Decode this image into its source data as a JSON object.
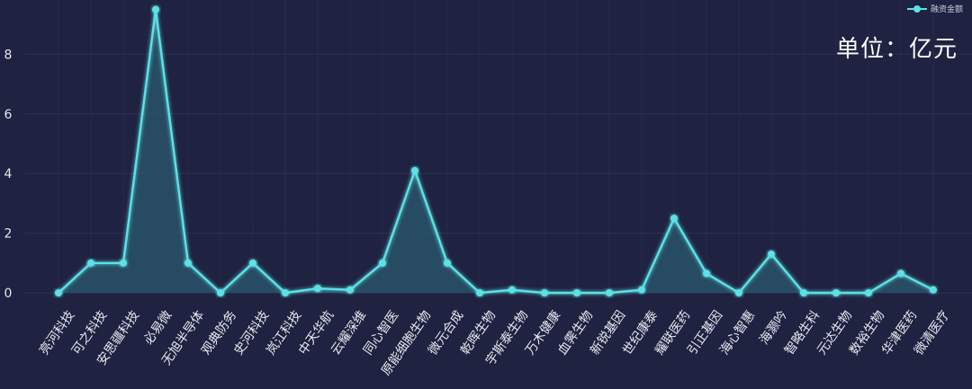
{
  "unit_label": "单位：亿元",
  "colors": {
    "background": "#1f2240",
    "line": "#5ce1e6",
    "area": "#2a5a6e",
    "grid": "#2c3156"
  },
  "chart_data": {
    "type": "line",
    "title": "",
    "xlabel": "",
    "ylabel": "",
    "ylim": [
      0,
      9.6
    ],
    "yticks": [
      0,
      2,
      4,
      6,
      8
    ],
    "grid": true,
    "legend_position": "top-right",
    "categories": [
      "亮河科技",
      "可之科技",
      "安思疆科技",
      "必易微",
      "无旭半导体",
      "观典防务",
      "史河科技",
      "岚江科技",
      "中天华航",
      "云耀深维",
      "同心智医",
      "原能细胞生物",
      "微元合成",
      "乾晖生物",
      "宇斯泰生物",
      "万木健康",
      "血霁生物",
      "新锐基因",
      "世纪康泰",
      "耀联医药",
      "引正基因",
      "海心智惠",
      "海灏吟",
      "智略生科",
      "元达生物",
      "数裕生物",
      "华津医药",
      "微清医疗"
    ],
    "series": [
      {
        "name": "融资金额",
        "values": [
          0,
          1,
          1,
          9.5,
          1,
          0,
          1,
          0,
          0.15,
          0.1,
          1,
          4.1,
          1,
          0,
          0.1,
          0,
          0,
          0,
          0.1,
          2.5,
          0.65,
          0,
          1.3,
          0,
          0,
          0,
          0.65,
          0.1
        ]
      }
    ]
  }
}
